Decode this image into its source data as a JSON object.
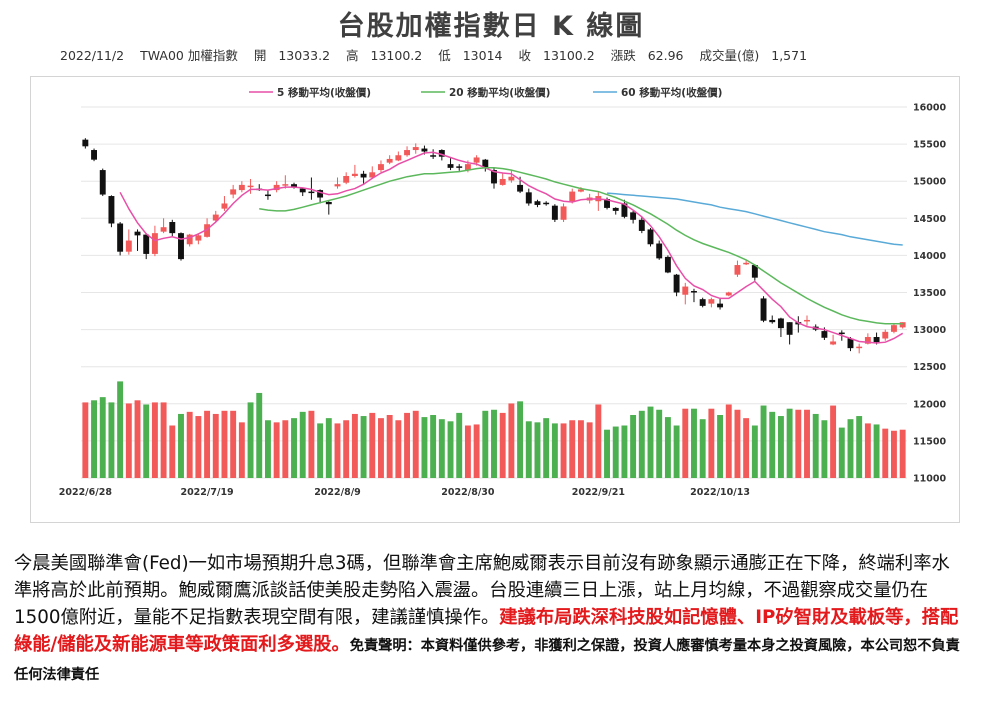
{
  "title": "台股加權指數日 K 線圖",
  "info": {
    "date": "2022/11/2",
    "code": "TWA00 加權指數",
    "open_label": "開",
    "open": "13033.2",
    "high_label": "高",
    "high": "13100.2",
    "low_label": "低",
    "low": "13014",
    "close_label": "收",
    "close": "13100.2",
    "change_label": "漲跌",
    "change": "62.96",
    "volume_label": "成交量(億)",
    "volume": "1,571"
  },
  "colors": {
    "up": "#f25a5a",
    "down": "#111111",
    "vol_up": "#f25a5a",
    "vol_down": "#4caf50",
    "ma5": "#e84fa8",
    "ma20": "#5cb85c",
    "ma60": "#5aaad8"
  },
  "chart_data": {
    "type": "candlestick",
    "legend": [
      "5 移動平均(收盤價)",
      "20 移動平均(收盤價)",
      "60 移動平均(收盤價)"
    ],
    "legend_position": "top",
    "ylim_price": [
      11000,
      16000
    ],
    "y_ticks": [
      "16000",
      "15500",
      "15000",
      "14500",
      "14000",
      "13500",
      "13000",
      "12500",
      "12000",
      "11500",
      "11000"
    ],
    "x_ticks": [
      {
        "label": "2022/6/28",
        "index": 0
      },
      {
        "label": "2022/7/19",
        "index": 14
      },
      {
        "label": "2022/8/9",
        "index": 29
      },
      {
        "label": "2022/8/30",
        "index": 44
      },
      {
        "label": "2022/9/21",
        "index": 59
      },
      {
        "label": "2022/10/13",
        "index": 73
      }
    ],
    "candles": [
      [
        15560,
        15470,
        15580,
        15440
      ],
      [
        15420,
        15290,
        15440,
        15270
      ],
      [
        15150,
        14820,
        15170,
        14800
      ],
      [
        14800,
        14430,
        14810,
        14380
      ],
      [
        14430,
        14050,
        14450,
        14000
      ],
      [
        14050,
        14200,
        14350,
        14010
      ],
      [
        14320,
        14270,
        14350,
        14060
      ],
      [
        14280,
        14020,
        14300,
        13950
      ],
      [
        14020,
        14300,
        14400,
        13990
      ],
      [
        14320,
        14380,
        14500,
        14300
      ],
      [
        14450,
        14300,
        14480,
        14260
      ],
      [
        14300,
        13950,
        14310,
        13930
      ],
      [
        14150,
        14280,
        14290,
        14120
      ],
      [
        14200,
        14270,
        14300,
        14150
      ],
      [
        14250,
        14420,
        14500,
        14240
      ],
      [
        14470,
        14550,
        14600,
        14450
      ],
      [
        14630,
        14700,
        14800,
        14600
      ],
      [
        14820,
        14890,
        14950,
        14770
      ],
      [
        14880,
        14950,
        15000,
        14850
      ],
      [
        14930,
        14940,
        15030,
        14830
      ],
      [
        14900,
        14890,
        14960,
        14870
      ],
      [
        14820,
        14800,
        14880,
        14750
      ],
      [
        14880,
        14950,
        15000,
        14850
      ],
      [
        14950,
        14960,
        15080,
        14900
      ],
      [
        14960,
        14920,
        14980,
        14900
      ],
      [
        14900,
        14850,
        14910,
        14800
      ],
      [
        14860,
        14850,
        15050,
        14750
      ],
      [
        14880,
        14780,
        14890,
        14700
      ],
      [
        14720,
        14690,
        14730,
        14550
      ],
      [
        14930,
        14960,
        15050,
        14900
      ],
      [
        14980,
        15070,
        15120,
        14960
      ],
      [
        15070,
        15100,
        15220,
        15050
      ],
      [
        15100,
        15050,
        15140,
        14950
      ],
      [
        15050,
        15120,
        15200,
        15030
      ],
      [
        15150,
        15230,
        15280,
        15120
      ],
      [
        15250,
        15300,
        15350,
        15230
      ],
      [
        15280,
        15350,
        15400,
        15270
      ],
      [
        15350,
        15420,
        15470,
        15330
      ],
      [
        15420,
        15460,
        15510,
        15370
      ],
      [
        15440,
        15400,
        15480,
        15360
      ],
      [
        15350,
        15340,
        15430,
        15300
      ],
      [
        15420,
        15330,
        15430,
        15280
      ],
      [
        15230,
        15180,
        15310,
        15150
      ],
      [
        15200,
        15180,
        15230,
        15140
      ],
      [
        15150,
        15230,
        15280,
        15120
      ],
      [
        15250,
        15320,
        15350,
        15210
      ],
      [
        15290,
        15190,
        15300,
        15130
      ],
      [
        15150,
        14970,
        15180,
        14900
      ],
      [
        14950,
        15030,
        15110,
        14940
      ],
      [
        15010,
        15060,
        15150,
        14980
      ],
      [
        14950,
        14860,
        15060,
        14840
      ],
      [
        14850,
        14700,
        14900,
        14670
      ],
      [
        14730,
        14680,
        14750,
        14650
      ],
      [
        14710,
        14690,
        14730,
        14670
      ],
      [
        14670,
        14480,
        14690,
        14450
      ],
      [
        14480,
        14660,
        14700,
        14450
      ],
      [
        14730,
        14860,
        14900,
        14700
      ],
      [
        14860,
        14890,
        14920,
        14850
      ],
      [
        14740,
        14780,
        14830,
        14700
      ],
      [
        14730,
        14800,
        14850,
        14600
      ],
      [
        14760,
        14640,
        14780,
        14620
      ],
      [
        14640,
        14600,
        14650,
        14550
      ],
      [
        14700,
        14520,
        14750,
        14500
      ],
      [
        14580,
        14480,
        14600,
        14430
      ],
      [
        14480,
        14330,
        14520,
        14300
      ],
      [
        14350,
        14150,
        14370,
        14120
      ],
      [
        14160,
        13960,
        14200,
        13940
      ],
      [
        13980,
        13770,
        14000,
        13760
      ],
      [
        13740,
        13500,
        13750,
        13450
      ],
      [
        13470,
        13580,
        13630,
        13340
      ],
      [
        13520,
        13510,
        13550,
        13370
      ],
      [
        13410,
        13320,
        13430,
        13300
      ],
      [
        13350,
        13410,
        13430,
        13300
      ],
      [
        13350,
        13300,
        13430,
        13270
      ],
      [
        13460,
        13500,
        13510,
        13450
      ],
      [
        13740,
        13870,
        13930,
        13710
      ],
      [
        13880,
        13900,
        13930,
        13870
      ],
      [
        13870,
        13700,
        13880,
        13660
      ],
      [
        13420,
        13120,
        13450,
        13100
      ],
      [
        13130,
        13100,
        13190,
        13080
      ],
      [
        13150,
        13020,
        13160,
        12900
      ],
      [
        13100,
        12930,
        13100,
        12800
      ],
      [
        13100,
        13070,
        13180,
        12960
      ],
      [
        13120,
        13130,
        13190,
        13050
      ],
      [
        13040,
        13000,
        13070,
        12980
      ],
      [
        12980,
        12890,
        13030,
        12860
      ],
      [
        12800,
        12840,
        12930,
        12790
      ],
      [
        12960,
        12940,
        12990,
        12850
      ],
      [
        12880,
        12750,
        12900,
        12710
      ],
      [
        12770,
        12770,
        12810,
        12680
      ],
      [
        12810,
        12900,
        12950,
        12800
      ],
      [
        12900,
        12830,
        12960,
        12800
      ],
      [
        12880,
        12970,
        13000,
        12850
      ],
      [
        12970,
        13060,
        13080,
        12950
      ],
      [
        13030,
        13100,
        13100,
        13014
      ]
    ],
    "volume_up": [
      true,
      false,
      false,
      false,
      false,
      true,
      true,
      false,
      true,
      true,
      true,
      false,
      true,
      true,
      true,
      true,
      true,
      true,
      true,
      false,
      false,
      false,
      true,
      true,
      false,
      false,
      true,
      false,
      false,
      true,
      true,
      true,
      false,
      true,
      true,
      true,
      true,
      true,
      true,
      false,
      false,
      false,
      false,
      false,
      true,
      true,
      false,
      false,
      true,
      true,
      false,
      false,
      false,
      false,
      false,
      true,
      true,
      true,
      true,
      true,
      false,
      false,
      false,
      false,
      false,
      false,
      false,
      false,
      false,
      true,
      false,
      false,
      true,
      false,
      true,
      true,
      true,
      false,
      false,
      false,
      false,
      false,
      true,
      true,
      false,
      false,
      true,
      false,
      false,
      false,
      true,
      false,
      true,
      true,
      true
    ],
    "volume_ratio": [
      0.72,
      0.74,
      0.77,
      0.72,
      0.92,
      0.71,
      0.74,
      0.7,
      0.72,
      0.72,
      0.5,
      0.61,
      0.63,
      0.59,
      0.64,
      0.61,
      0.64,
      0.64,
      0.53,
      0.72,
      0.81,
      0.55,
      0.53,
      0.55,
      0.57,
      0.63,
      0.64,
      0.52,
      0.57,
      0.52,
      0.55,
      0.61,
      0.59,
      0.62,
      0.57,
      0.6,
      0.55,
      0.62,
      0.64,
      0.58,
      0.6,
      0.56,
      0.54,
      0.62,
      0.5,
      0.51,
      0.64,
      0.65,
      0.62,
      0.71,
      0.73,
      0.54,
      0.53,
      0.57,
      0.52,
      0.52,
      0.55,
      0.55,
      0.53,
      0.7,
      0.46,
      0.49,
      0.5,
      0.6,
      0.64,
      0.68,
      0.65,
      0.58,
      0.5,
      0.66,
      0.66,
      0.56,
      0.66,
      0.6,
      0.7,
      0.65,
      0.57,
      0.5,
      0.69,
      0.63,
      0.59,
      0.66,
      0.65,
      0.65,
      0.61,
      0.55,
      0.69,
      0.48,
      0.56,
      0.59,
      0.52,
      0.51,
      0.47,
      0.45,
      0.46
    ],
    "ma5": [
      null,
      null,
      null,
      null,
      14850,
      14630,
      14440,
      14290,
      14200,
      14230,
      14250,
      14220,
      14240,
      14290,
      14350,
      14450,
      14570,
      14700,
      14810,
      14890,
      14890,
      14880,
      14900,
      14920,
      14920,
      14910,
      14890,
      14850,
      14820,
      14830,
      14870,
      14900,
      14960,
      15040,
      15110,
      15160,
      15230,
      15280,
      15330,
      15380,
      15390,
      15360,
      15320,
      15280,
      15250,
      15230,
      15180,
      15130,
      15110,
      15100,
      15020,
      14940,
      14880,
      14830,
      14760,
      14730,
      14720,
      14750,
      14760,
      14760,
      14750,
      14720,
      14690,
      14610,
      14520,
      14400,
      14250,
      14070,
      13860,
      13690,
      13590,
      13540,
      13460,
      13420,
      13420,
      13500,
      13580,
      13650,
      13530,
      13410,
      13310,
      13170,
      13090,
      13040,
      13020,
      13000,
      12960,
      12920,
      12880,
      12840,
      12830,
      12820,
      12830,
      12880,
      12950
    ],
    "ma20": [
      null,
      null,
      null,
      null,
      null,
      null,
      null,
      null,
      null,
      null,
      null,
      null,
      null,
      null,
      null,
      null,
      null,
      null,
      null,
      null,
      14630,
      14610,
      14600,
      14600,
      14620,
      14650,
      14680,
      14710,
      14740,
      14770,
      14800,
      14840,
      14880,
      14920,
      14960,
      15000,
      15030,
      15060,
      15080,
      15100,
      15100,
      15110,
      15120,
      15130,
      15150,
      15170,
      15180,
      15180,
      15170,
      15150,
      15120,
      15090,
      15060,
      15030,
      14990,
      14960,
      14930,
      14900,
      14880,
      14860,
      14820,
      14780,
      14730,
      14680,
      14620,
      14560,
      14490,
      14420,
      14340,
      14270,
      14210,
      14160,
      14120,
      14080,
      14040,
      13990,
      13940,
      13870,
      13790,
      13710,
      13630,
      13560,
      13490,
      13420,
      13360,
      13300,
      13250,
      13200,
      13160,
      13130,
      13110,
      13090,
      13080,
      13080,
      13080
    ],
    "ma60": [
      null,
      null,
      null,
      null,
      null,
      null,
      null,
      null,
      null,
      null,
      null,
      null,
      null,
      null,
      null,
      null,
      null,
      null,
      null,
      null,
      null,
      null,
      null,
      null,
      null,
      null,
      null,
      null,
      null,
      null,
      null,
      null,
      null,
      null,
      null,
      null,
      null,
      null,
      null,
      null,
      null,
      null,
      null,
      null,
      null,
      null,
      null,
      null,
      null,
      null,
      null,
      null,
      null,
      null,
      null,
      null,
      null,
      null,
      null,
      null,
      14840,
      14830,
      14820,
      14810,
      14800,
      14790,
      14780,
      14770,
      14760,
      14740,
      14720,
      14700,
      14680,
      14650,
      14630,
      14610,
      14590,
      14560,
      14530,
      14500,
      14470,
      14440,
      14410,
      14380,
      14350,
      14320,
      14300,
      14280,
      14250,
      14230,
      14210,
      14190,
      14170,
      14150,
      14140
    ]
  },
  "paragraph": {
    "normal": "今晨美國聯準會(Fed)一如市場預期升息3碼，但聯準會主席鮑威爾表示目前沒有跡象顯示通膨正在下降，終端利率水準將高於此前預期。鮑威爾鷹派談話使美股走勢陷入震盪。台股連續三日上漲，站上月均線，不過觀察成交量仍在1500億附近，量能不足指數表現空間有限，建議謹慎操作。",
    "highlight": "建議布局跌深科技股如記憶體、IP矽智財及載板等，搭配綠能/儲能及新能源車等政策面利多選股。",
    "disclaimer": "免責聲明：本資料僅供參考，非獲利之保證，投資人應審慎考量本身之投資風險，本公司恕不負責任何法律責任"
  }
}
